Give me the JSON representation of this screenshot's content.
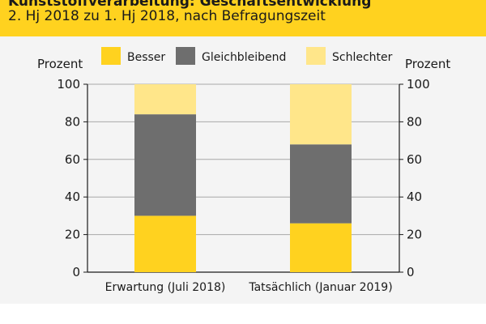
{
  "header": {
    "title": "Kunststoffverarbeitung: Geschäftsentwicklung",
    "subtitle": "2. Hj 2018 zu 1. Hj 2018, nach Befragungszeit"
  },
  "colors": {
    "header_bg": "#ffd21f",
    "besser": "#ffd21f",
    "gleichbleibend": "#6e6e6e",
    "schlechter": "#ffe68a"
  },
  "chart_data": {
    "type": "bar",
    "stacked": true,
    "categories": [
      "Erwartung (Juli 2018)",
      "Tatsächlich (Januar 2019)"
    ],
    "series": [
      {
        "name": "Besser",
        "values": [
          30,
          26
        ]
      },
      {
        "name": "Gleichbleibend",
        "values": [
          54,
          42
        ]
      },
      {
        "name": "Schlechter",
        "values": [
          16,
          32
        ]
      }
    ],
    "ylabel": "Prozent",
    "ylabel_right": "Prozent",
    "ylim": [
      0,
      100
    ],
    "yticks": [
      0,
      20,
      40,
      60,
      80,
      100
    ],
    "legend_placement": "top-center",
    "grid": true
  }
}
